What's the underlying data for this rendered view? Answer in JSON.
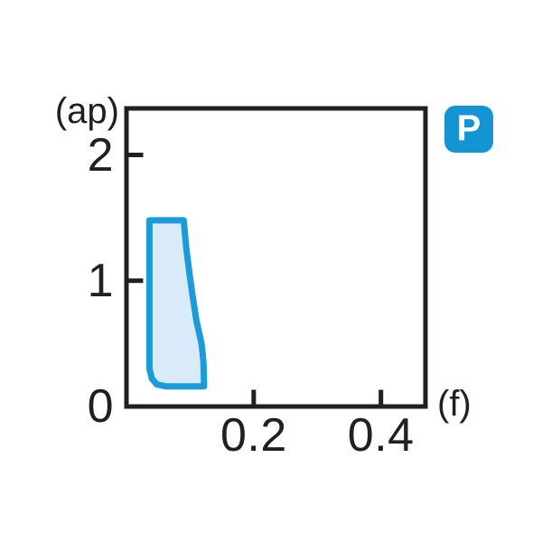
{
  "page": {
    "background": "#ffffff"
  },
  "badge": {
    "label": "P",
    "bg_color": "#1495d3",
    "text_color": "#ffffff"
  },
  "chart_data": {
    "type": "area",
    "title": "",
    "xlabel": "(f)",
    "ylabel": "(ap)",
    "xlim": [
      0,
      0.47
    ],
    "ylim": [
      0,
      2.37
    ],
    "grid": false,
    "axis_color": "#231f20",
    "x_ticks": [
      {
        "value": 0.2,
        "label": "0.2",
        "mark": true
      },
      {
        "value": 0.4,
        "label": "0.4",
        "mark": true
      }
    ],
    "y_ticks": [
      {
        "value": 0,
        "label": "0",
        "mark": false
      },
      {
        "value": 1,
        "label": "1",
        "mark": true
      },
      {
        "value": 2,
        "label": "2",
        "mark": true
      }
    ],
    "region": {
      "name": "recommended-application-range",
      "f_range": [
        0.03,
        0.12
      ],
      "ap_range": [
        0.16,
        1.48
      ],
      "fill_color": "#d9eaf8",
      "stroke_color": "#1b9cd8",
      "stroke_width": 7,
      "outline_points_f_ap": [
        [
          0.036,
          1.48
        ],
        [
          0.09,
          1.48
        ],
        [
          0.094,
          1.26
        ],
        [
          0.099,
          1.06
        ],
        [
          0.104,
          0.88
        ],
        [
          0.11,
          0.68
        ],
        [
          0.118,
          0.5
        ],
        [
          0.121,
          0.36
        ],
        [
          0.122,
          0.16
        ],
        [
          0.062,
          0.16
        ],
        [
          0.048,
          0.175
        ],
        [
          0.04,
          0.22
        ],
        [
          0.036,
          0.3
        ]
      ]
    }
  }
}
